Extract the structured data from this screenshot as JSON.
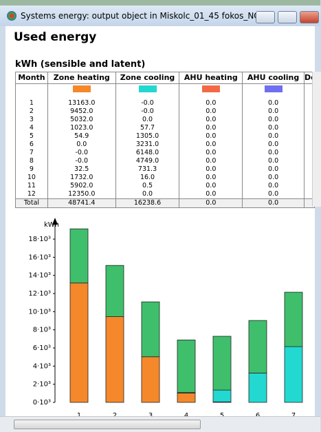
{
  "window": {
    "title": "Systems energy: output object in Miskolc_01_45 fokos_NO ..."
  },
  "header": {
    "title": "Used energy",
    "subtitle": "kWh (sensible and latent)"
  },
  "table": {
    "columns": [
      "Month",
      "Zone heating",
      "Zone cooling",
      "AHU heating",
      "AHU cooling",
      "De"
    ],
    "colors": [
      "#f4882a",
      "#22d8d0",
      "#f26a45",
      "#6f6ef0"
    ],
    "rows": [
      [
        "1",
        "13163.0",
        "-0.0",
        "0.0",
        "0.0"
      ],
      [
        "2",
        "9452.0",
        "-0.0",
        "0.0",
        "0.0"
      ],
      [
        "3",
        "5032.0",
        "0.0",
        "0.0",
        "0.0"
      ],
      [
        "4",
        "1023.0",
        "57.7",
        "0.0",
        "0.0"
      ],
      [
        "5",
        "54.9",
        "1305.0",
        "0.0",
        "0.0"
      ],
      [
        "6",
        "0.0",
        "3231.0",
        "0.0",
        "0.0"
      ],
      [
        "7",
        "-0.0",
        "6148.0",
        "0.0",
        "0.0"
      ],
      [
        "8",
        "-0.0",
        "4749.0",
        "0.0",
        "0.0"
      ],
      [
        "9",
        "32.5",
        "731.3",
        "0.0",
        "0.0"
      ],
      [
        "10",
        "1732.0",
        "16.0",
        "0.0",
        "0.0"
      ],
      [
        "11",
        "5902.0",
        "0.5",
        "0.0",
        "0.0"
      ],
      [
        "12",
        "12350.0",
        "0.0",
        "0.0",
        "0.0"
      ]
    ],
    "total": [
      "Total",
      "48741.4",
      "16238.6",
      "0.0",
      "0.0"
    ]
  },
  "chart_data": {
    "type": "bar",
    "stacked": true,
    "y_label": "kWh",
    "categories": [
      "1",
      "2",
      "3",
      "4",
      "5",
      "6",
      "7"
    ],
    "series": [
      {
        "name": "Zone heating",
        "color": "#f4882a",
        "values": [
          13163,
          9452,
          5032,
          1023,
          54.9,
          0,
          0
        ]
      },
      {
        "name": "Zone cooling",
        "color": "#22d8d0",
        "values": [
          0,
          0,
          0,
          57.7,
          1305,
          3231,
          6148
        ]
      },
      {
        "color": "#3fbf6c",
        "values": [
          5970,
          5650,
          6050,
          5800,
          5930,
          5800,
          6000
        ]
      }
    ],
    "ylim": [
      0,
      19600
    ],
    "yticks": [
      {
        "value": 0,
        "label": "0·10³"
      },
      {
        "value": 2000,
        "label": "2·10³"
      },
      {
        "value": 4000,
        "label": "4·10³"
      },
      {
        "value": 6000,
        "label": "6·10³"
      },
      {
        "value": 8000,
        "label": "8·10³"
      },
      {
        "value": 10000,
        "label": "10·10³"
      },
      {
        "value": 12000,
        "label": "12·10³"
      },
      {
        "value": 14000,
        "label": "14·10³"
      },
      {
        "value": 16000,
        "label": "16·10³"
      },
      {
        "value": 18000,
        "label": "18·10³"
      }
    ]
  }
}
